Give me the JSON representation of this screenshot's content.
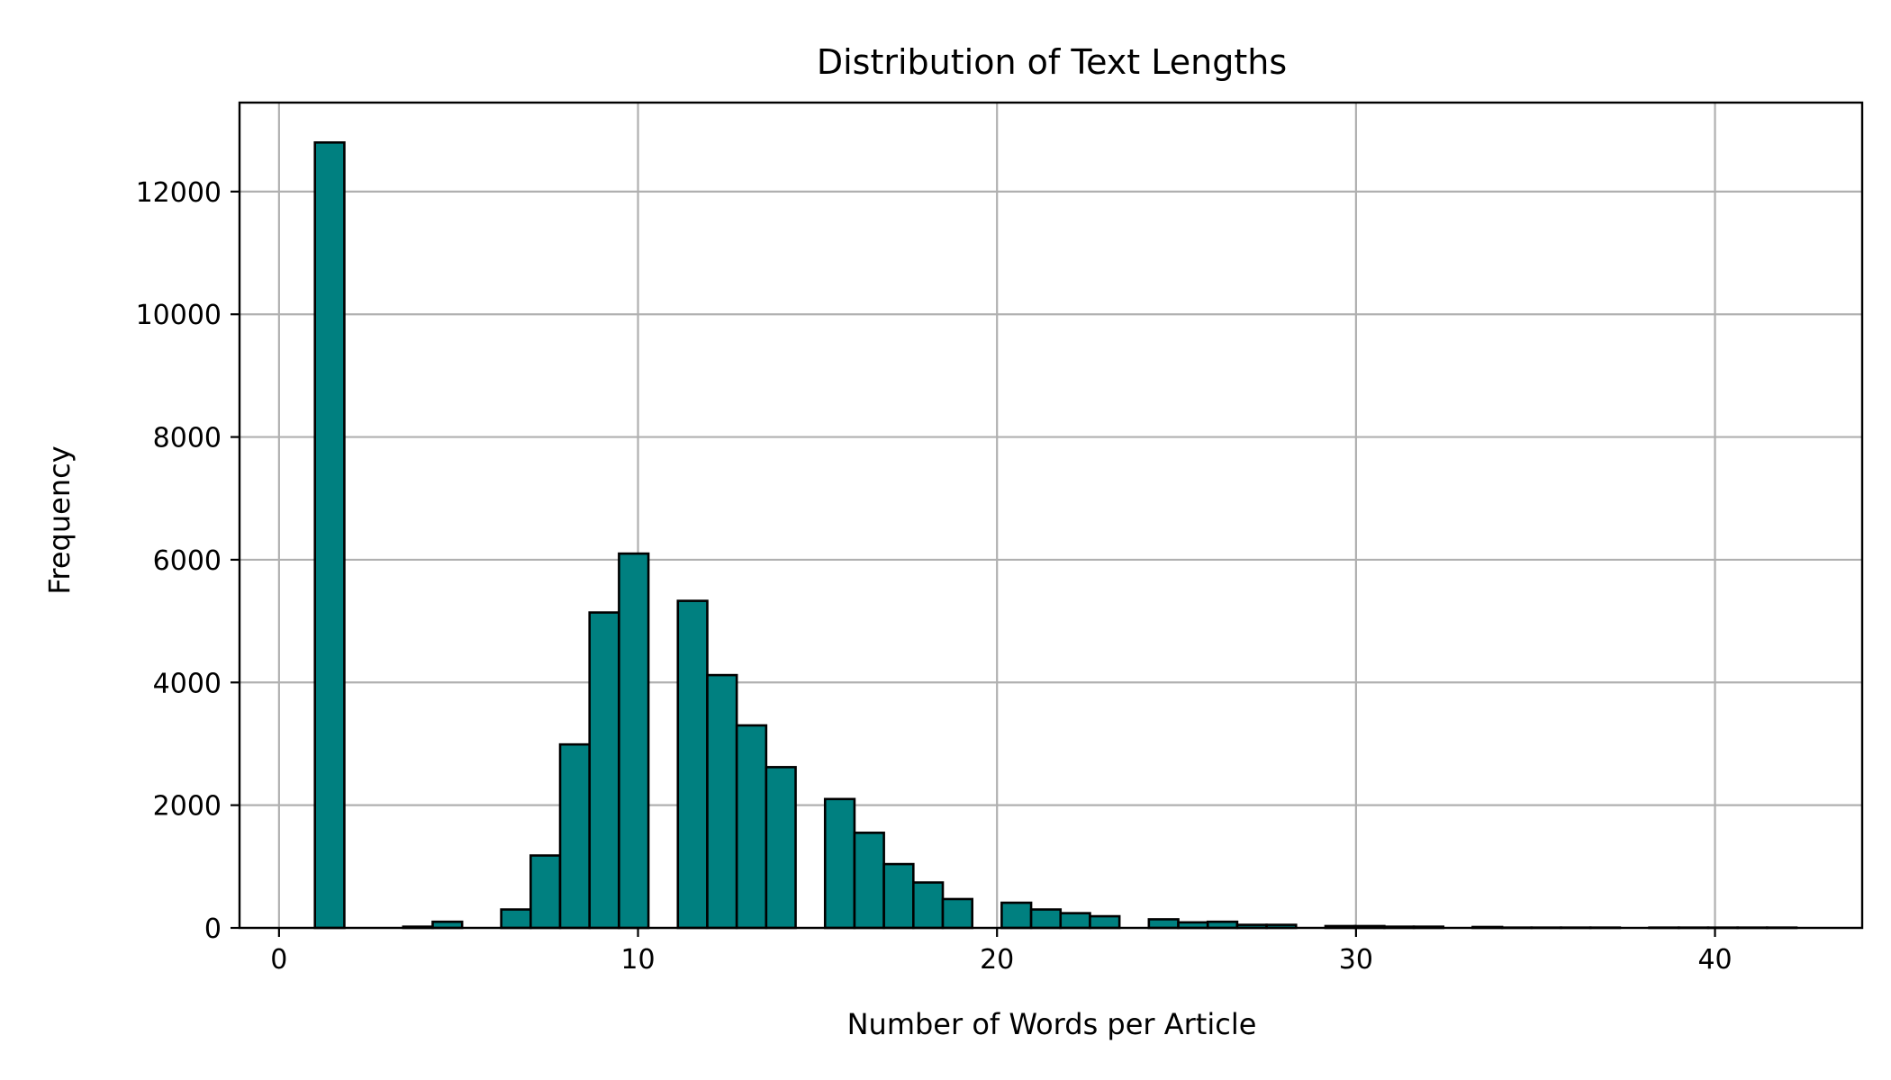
{
  "chart_data": {
    "type": "bar",
    "title": "Distribution of Text Lengths",
    "xlabel": "Number of Words per Article",
    "ylabel": "Frequency",
    "xlim": [
      -1.1,
      44.1
    ],
    "ylim": [
      0,
      13450
    ],
    "x_ticks": [
      0,
      10,
      20,
      30,
      40
    ],
    "y_ticks": [
      0,
      2000,
      4000,
      6000,
      8000,
      10000,
      12000
    ],
    "grid": true,
    "bar_color": "#008080",
    "edge_color": "#000000",
    "bin_width": 0.82,
    "bins": [
      {
        "x": 1.0,
        "count": 12800
      },
      {
        "x": 3.46,
        "count": 20
      },
      {
        "x": 4.28,
        "count": 100
      },
      {
        "x": 6.19,
        "count": 300
      },
      {
        "x": 7.01,
        "count": 1180
      },
      {
        "x": 7.83,
        "count": 2990
      },
      {
        "x": 8.65,
        "count": 5140
      },
      {
        "x": 9.47,
        "count": 6100
      },
      {
        "x": 11.11,
        "count": 5330
      },
      {
        "x": 11.93,
        "count": 4120
      },
      {
        "x": 12.75,
        "count": 3300
      },
      {
        "x": 13.57,
        "count": 2620
      },
      {
        "x": 15.21,
        "count": 2100
      },
      {
        "x": 16.03,
        "count": 1550
      },
      {
        "x": 16.85,
        "count": 1040
      },
      {
        "x": 17.67,
        "count": 740
      },
      {
        "x": 18.49,
        "count": 470
      },
      {
        "x": 20.13,
        "count": 410
      },
      {
        "x": 20.95,
        "count": 300
      },
      {
        "x": 21.77,
        "count": 240
      },
      {
        "x": 22.59,
        "count": 190
      },
      {
        "x": 24.23,
        "count": 140
      },
      {
        "x": 25.05,
        "count": 90
      },
      {
        "x": 25.87,
        "count": 100
      },
      {
        "x": 26.69,
        "count": 50
      },
      {
        "x": 27.51,
        "count": 50
      },
      {
        "x": 29.15,
        "count": 30
      },
      {
        "x": 29.97,
        "count": 30
      },
      {
        "x": 30.79,
        "count": 20
      },
      {
        "x": 31.61,
        "count": 20
      },
      {
        "x": 33.25,
        "count": 15
      },
      {
        "x": 34.07,
        "count": 5
      },
      {
        "x": 34.89,
        "count": 5
      },
      {
        "x": 35.71,
        "count": 5
      },
      {
        "x": 36.53,
        "count": 5
      },
      {
        "x": 38.17,
        "count": 5
      },
      {
        "x": 38.99,
        "count": 5
      },
      {
        "x": 39.81,
        "count": 5
      },
      {
        "x": 40.63,
        "count": 5
      },
      {
        "x": 41.45,
        "count": 5
      }
    ]
  }
}
